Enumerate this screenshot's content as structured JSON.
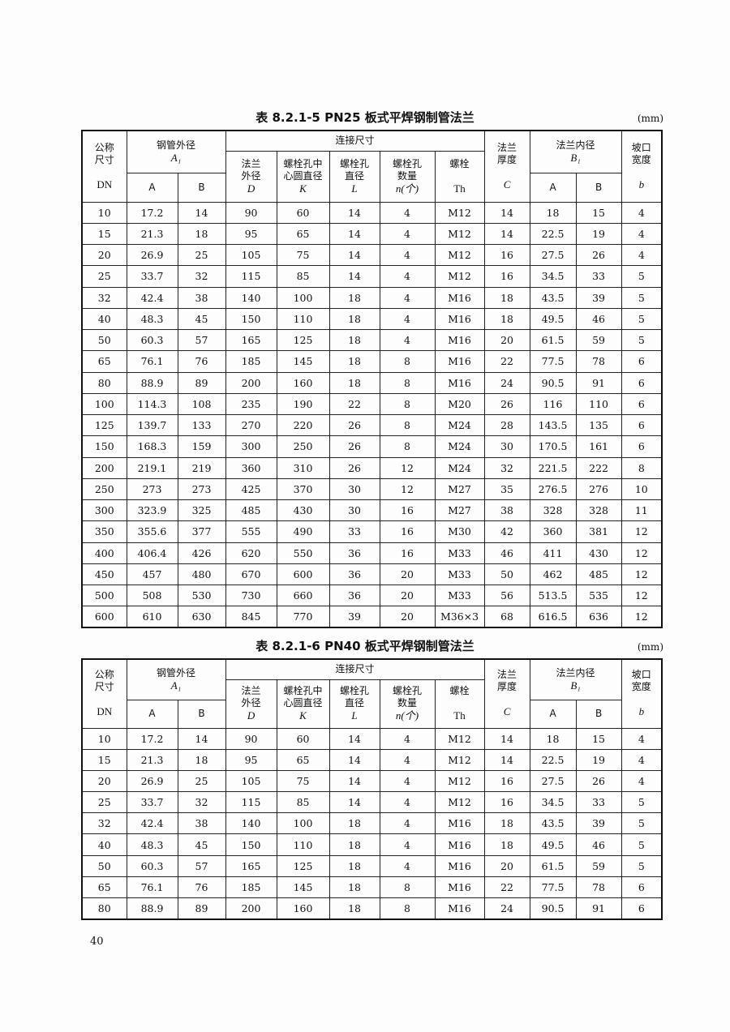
{
  "header": {
    "dn_top": "公称\n尺寸",
    "dn": "DN",
    "pipe_od": "钢管外径",
    "pipe_od_sym": "A₁",
    "A": "A",
    "B": "B",
    "conn": "连接尺寸",
    "D_label": "法兰\n外径",
    "D": "D",
    "K_label": "螺栓孔中\n心圆直径",
    "K": "K",
    "L_label": "螺栓孔\n直径",
    "L": "L",
    "n_label": "螺栓孔\n数量",
    "n": "n(个)",
    "th_label": "螺栓",
    "th": "Th",
    "C_label": "法兰\n厚度",
    "C": "C",
    "B1_label": "法兰内径",
    "B1": "B₁",
    "b_label": "坡口\n宽度",
    "b": "b"
  },
  "tables": [
    {
      "title": "表 8.2.1-5   PN25 板式平焊钢制管法兰",
      "unit": "(mm)",
      "rows": [
        [
          "10",
          "17.2",
          "14",
          "90",
          "60",
          "14",
          "4",
          "M12",
          "14",
          "18",
          "15",
          "4"
        ],
        [
          "15",
          "21.3",
          "18",
          "95",
          "65",
          "14",
          "4",
          "M12",
          "14",
          "22.5",
          "19",
          "4"
        ],
        [
          "20",
          "26.9",
          "25",
          "105",
          "75",
          "14",
          "4",
          "M12",
          "16",
          "27.5",
          "26",
          "4"
        ],
        [
          "25",
          "33.7",
          "32",
          "115",
          "85",
          "14",
          "4",
          "M12",
          "16",
          "34.5",
          "33",
          "5"
        ],
        [
          "32",
          "42.4",
          "38",
          "140",
          "100",
          "18",
          "4",
          "M16",
          "18",
          "43.5",
          "39",
          "5"
        ],
        [
          "40",
          "48.3",
          "45",
          "150",
          "110",
          "18",
          "4",
          "M16",
          "18",
          "49.5",
          "46",
          "5"
        ],
        [
          "50",
          "60.3",
          "57",
          "165",
          "125",
          "18",
          "4",
          "M16",
          "20",
          "61.5",
          "59",
          "5"
        ],
        [
          "65",
          "76.1",
          "76",
          "185",
          "145",
          "18",
          "8",
          "M16",
          "22",
          "77.5",
          "78",
          "6"
        ],
        [
          "80",
          "88.9",
          "89",
          "200",
          "160",
          "18",
          "8",
          "M16",
          "24",
          "90.5",
          "91",
          "6"
        ],
        [
          "100",
          "114.3",
          "108",
          "235",
          "190",
          "22",
          "8",
          "M20",
          "26",
          "116",
          "110",
          "6"
        ],
        [
          "125",
          "139.7",
          "133",
          "270",
          "220",
          "26",
          "8",
          "M24",
          "28",
          "143.5",
          "135",
          "6"
        ],
        [
          "150",
          "168.3",
          "159",
          "300",
          "250",
          "26",
          "8",
          "M24",
          "30",
          "170.5",
          "161",
          "6"
        ],
        [
          "200",
          "219.1",
          "219",
          "360",
          "310",
          "26",
          "12",
          "M24",
          "32",
          "221.5",
          "222",
          "8"
        ],
        [
          "250",
          "273",
          "273",
          "425",
          "370",
          "30",
          "12",
          "M27",
          "35",
          "276.5",
          "276",
          "10"
        ],
        [
          "300",
          "323.9",
          "325",
          "485",
          "430",
          "30",
          "16",
          "M27",
          "38",
          "328",
          "328",
          "11"
        ],
        [
          "350",
          "355.6",
          "377",
          "555",
          "490",
          "33",
          "16",
          "M30",
          "42",
          "360",
          "381",
          "12"
        ],
        [
          "400",
          "406.4",
          "426",
          "620",
          "550",
          "36",
          "16",
          "M33",
          "46",
          "411",
          "430",
          "12"
        ],
        [
          "450",
          "457",
          "480",
          "670",
          "600",
          "36",
          "20",
          "M33",
          "50",
          "462",
          "485",
          "12"
        ],
        [
          "500",
          "508",
          "530",
          "730",
          "660",
          "36",
          "20",
          "M33",
          "56",
          "513.5",
          "535",
          "12"
        ],
        [
          "600",
          "610",
          "630",
          "845",
          "770",
          "39",
          "20",
          "M36×3",
          "68",
          "616.5",
          "636",
          "12"
        ]
      ]
    },
    {
      "title": "表 8.2.1-6   PN40 板式平焊钢制管法兰",
      "unit": "(mm)",
      "rows": [
        [
          "10",
          "17.2",
          "14",
          "90",
          "60",
          "14",
          "4",
          "M12",
          "14",
          "18",
          "15",
          "4"
        ],
        [
          "15",
          "21.3",
          "18",
          "95",
          "65",
          "14",
          "4",
          "M12",
          "14",
          "22.5",
          "19",
          "4"
        ],
        [
          "20",
          "26.9",
          "25",
          "105",
          "75",
          "14",
          "4",
          "M12",
          "16",
          "27.5",
          "26",
          "4"
        ],
        [
          "25",
          "33.7",
          "32",
          "115",
          "85",
          "14",
          "4",
          "M12",
          "16",
          "34.5",
          "33",
          "5"
        ],
        [
          "32",
          "42.4",
          "38",
          "140",
          "100",
          "18",
          "4",
          "M16",
          "18",
          "43.5",
          "39",
          "5"
        ],
        [
          "40",
          "48.3",
          "45",
          "150",
          "110",
          "18",
          "4",
          "M16",
          "18",
          "49.5",
          "46",
          "5"
        ],
        [
          "50",
          "60.3",
          "57",
          "165",
          "125",
          "18",
          "4",
          "M16",
          "20",
          "61.5",
          "59",
          "5"
        ],
        [
          "65",
          "76.1",
          "76",
          "185",
          "145",
          "18",
          "8",
          "M16",
          "22",
          "77.5",
          "78",
          "6"
        ],
        [
          "80",
          "88.9",
          "89",
          "200",
          "160",
          "18",
          "8",
          "M16",
          "24",
          "90.5",
          "91",
          "6"
        ]
      ]
    }
  ],
  "page_number": "40"
}
